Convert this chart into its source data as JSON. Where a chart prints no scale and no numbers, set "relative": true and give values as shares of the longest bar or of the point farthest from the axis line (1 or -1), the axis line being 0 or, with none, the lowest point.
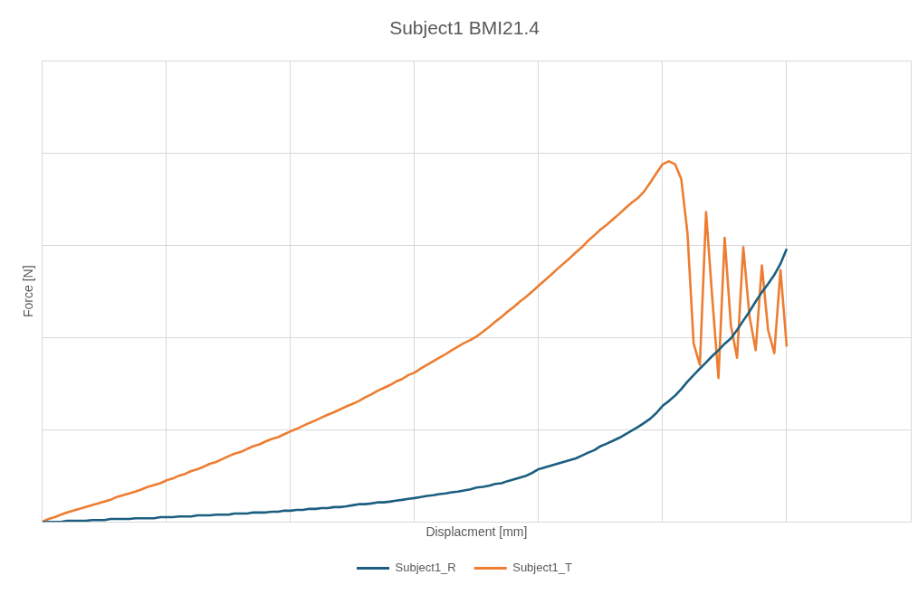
{
  "chart_data": {
    "type": "line",
    "title": "Subject1 BMI21.4",
    "xlabel": "Displacment [mm]",
    "ylabel": "Force [N]",
    "relative": true,
    "grid": true,
    "legend": "bottom",
    "marker": "none",
    "line_style": "solid",
    "categories": [
      null,
      null,
      null,
      null,
      null,
      null,
      null,
      null,
      null,
      null,
      null,
      null,
      null,
      null,
      null,
      null,
      null,
      null,
      null,
      null,
      null,
      null,
      null,
      null,
      null,
      null,
      null,
      null,
      null,
      null,
      null,
      null,
      null,
      null,
      null,
      null,
      null,
      null,
      null,
      null,
      null,
      null,
      null,
      null,
      null,
      null,
      null,
      null,
      null,
      null,
      null,
      null,
      null,
      null,
      null,
      null,
      null,
      null,
      null,
      null,
      null,
      null,
      null,
      null,
      null,
      null,
      null,
      null,
      null,
      null,
      null,
      null,
      null,
      null,
      null,
      null,
      null,
      null,
      null,
      null,
      null,
      null,
      null,
      null,
      null,
      null,
      null,
      null,
      null,
      null,
      null,
      null,
      null,
      null,
      null,
      null,
      null,
      null,
      null,
      null,
      null,
      null,
      null,
      null,
      null,
      null,
      null,
      null,
      null,
      null,
      null,
      null,
      null,
      null,
      null,
      null,
      null,
      null,
      null,
      null,
      null
    ],
    "series": [
      {
        "name": "Subject1_R",
        "color": "#1b5e80",
        "values": [
          0,
          0,
          0,
          0,
          0.003,
          0.003,
          0.003,
          0.003,
          0.005,
          0.005,
          0.005,
          0.008,
          0.008,
          0.008,
          0.008,
          0.01,
          0.01,
          0.01,
          0.01,
          0.013,
          0.013,
          0.013,
          0.015,
          0.015,
          0.015,
          0.018,
          0.018,
          0.018,
          0.02,
          0.02,
          0.02,
          0.023,
          0.023,
          0.023,
          0.026,
          0.026,
          0.026,
          0.028,
          0.028,
          0.031,
          0.031,
          0.033,
          0.033,
          0.036,
          0.036,
          0.038,
          0.038,
          0.041,
          0.041,
          0.043,
          0.046,
          0.049,
          0.049,
          0.051,
          0.054,
          0.054,
          0.056,
          0.059,
          0.061,
          0.064,
          0.066,
          0.069,
          0.072,
          0.074,
          0.077,
          0.079,
          0.082,
          0.084,
          0.087,
          0.09,
          0.095,
          0.097,
          0.1,
          0.105,
          0.107,
          0.113,
          0.118,
          0.123,
          0.128,
          0.136,
          0.146,
          0.151,
          0.156,
          0.161,
          0.166,
          0.171,
          0.176,
          0.184,
          0.192,
          0.199,
          0.21,
          0.217,
          0.225,
          0.233,
          0.243,
          0.253,
          0.263,
          0.274,
          0.286,
          0.302,
          0.322,
          0.335,
          0.35,
          0.368,
          0.389,
          0.407,
          0.425,
          0.442,
          0.46,
          0.476,
          0.494,
          0.509,
          0.532,
          0.558,
          0.583,
          0.611,
          0.637,
          0.66,
          0.685,
          0.716,
          0.757
        ]
      },
      {
        "name": "Subject1_T",
        "color": "#ed7d31",
        "values": [
          0,
          0.008,
          0.013,
          0.02,
          0.026,
          0.031,
          0.036,
          0.041,
          0.046,
          0.051,
          0.056,
          0.061,
          0.069,
          0.074,
          0.079,
          0.084,
          0.09,
          0.097,
          0.102,
          0.107,
          0.115,
          0.12,
          0.128,
          0.133,
          0.141,
          0.146,
          0.153,
          0.161,
          0.166,
          0.174,
          0.182,
          0.189,
          0.194,
          0.202,
          0.21,
          0.215,
          0.223,
          0.23,
          0.235,
          0.243,
          0.251,
          0.258,
          0.266,
          0.274,
          0.281,
          0.289,
          0.297,
          0.304,
          0.312,
          0.32,
          0.327,
          0.335,
          0.345,
          0.353,
          0.363,
          0.371,
          0.379,
          0.389,
          0.396,
          0.407,
          0.414,
          0.425,
          0.435,
          0.445,
          0.455,
          0.465,
          0.476,
          0.486,
          0.496,
          0.504,
          0.514,
          0.527,
          0.54,
          0.555,
          0.568,
          0.583,
          0.596,
          0.611,
          0.624,
          0.639,
          0.655,
          0.67,
          0.685,
          0.701,
          0.716,
          0.731,
          0.747,
          0.762,
          0.78,
          0.795,
          0.811,
          0.824,
          0.839,
          0.854,
          0.87,
          0.885,
          0.898,
          0.916,
          0.941,
          0.967,
          0.992,
          1,
          0.992,
          0.951,
          0.801,
          0.494,
          0.435,
          0.859,
          0.621,
          0.399,
          0.788,
          0.545,
          0.455,
          0.762,
          0.57,
          0.476,
          0.711,
          0.532,
          0.468,
          0.698,
          0.486
        ]
      }
    ]
  }
}
